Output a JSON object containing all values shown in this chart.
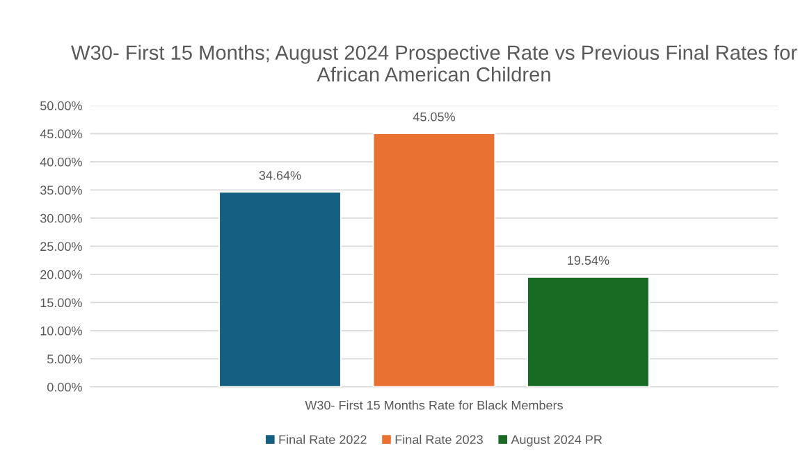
{
  "chart_data": {
    "type": "bar",
    "title": "W30- First 15 Months; August 2024 Prospective Rate vs Previous Final Rates for African American Children",
    "categories": [
      "W30- First 15 Months Rate for Black Members"
    ],
    "series": [
      {
        "name": "Final Rate 2022",
        "color": "#156082",
        "values": [
          34.64
        ],
        "value_labels": [
          "34.64%"
        ]
      },
      {
        "name": "Final Rate 2023",
        "color": "#e97132",
        "values": [
          45.05
        ],
        "value_labels": [
          "45.05%"
        ]
      },
      {
        "name": "August 2024 PR",
        "color": "#196b24",
        "values": [
          19.54
        ],
        "value_labels": [
          "19.54%"
        ]
      }
    ],
    "ylim": [
      0,
      50
    ],
    "yticks": [
      {
        "value": 0,
        "label": "0.00%"
      },
      {
        "value": 5,
        "label": "5.00%"
      },
      {
        "value": 10,
        "label": "10.00%"
      },
      {
        "value": 15,
        "label": "15.00%"
      },
      {
        "value": 20,
        "label": "20.00%"
      },
      {
        "value": 25,
        "label": "25.00%"
      },
      {
        "value": 30,
        "label": "30.00%"
      },
      {
        "value": 35,
        "label": "35.00%"
      },
      {
        "value": 40,
        "label": "40.00%"
      },
      {
        "value": 45,
        "label": "45.00%"
      },
      {
        "value": 50,
        "label": "50.00%"
      }
    ],
    "grid": "y",
    "legend": "bottom"
  }
}
